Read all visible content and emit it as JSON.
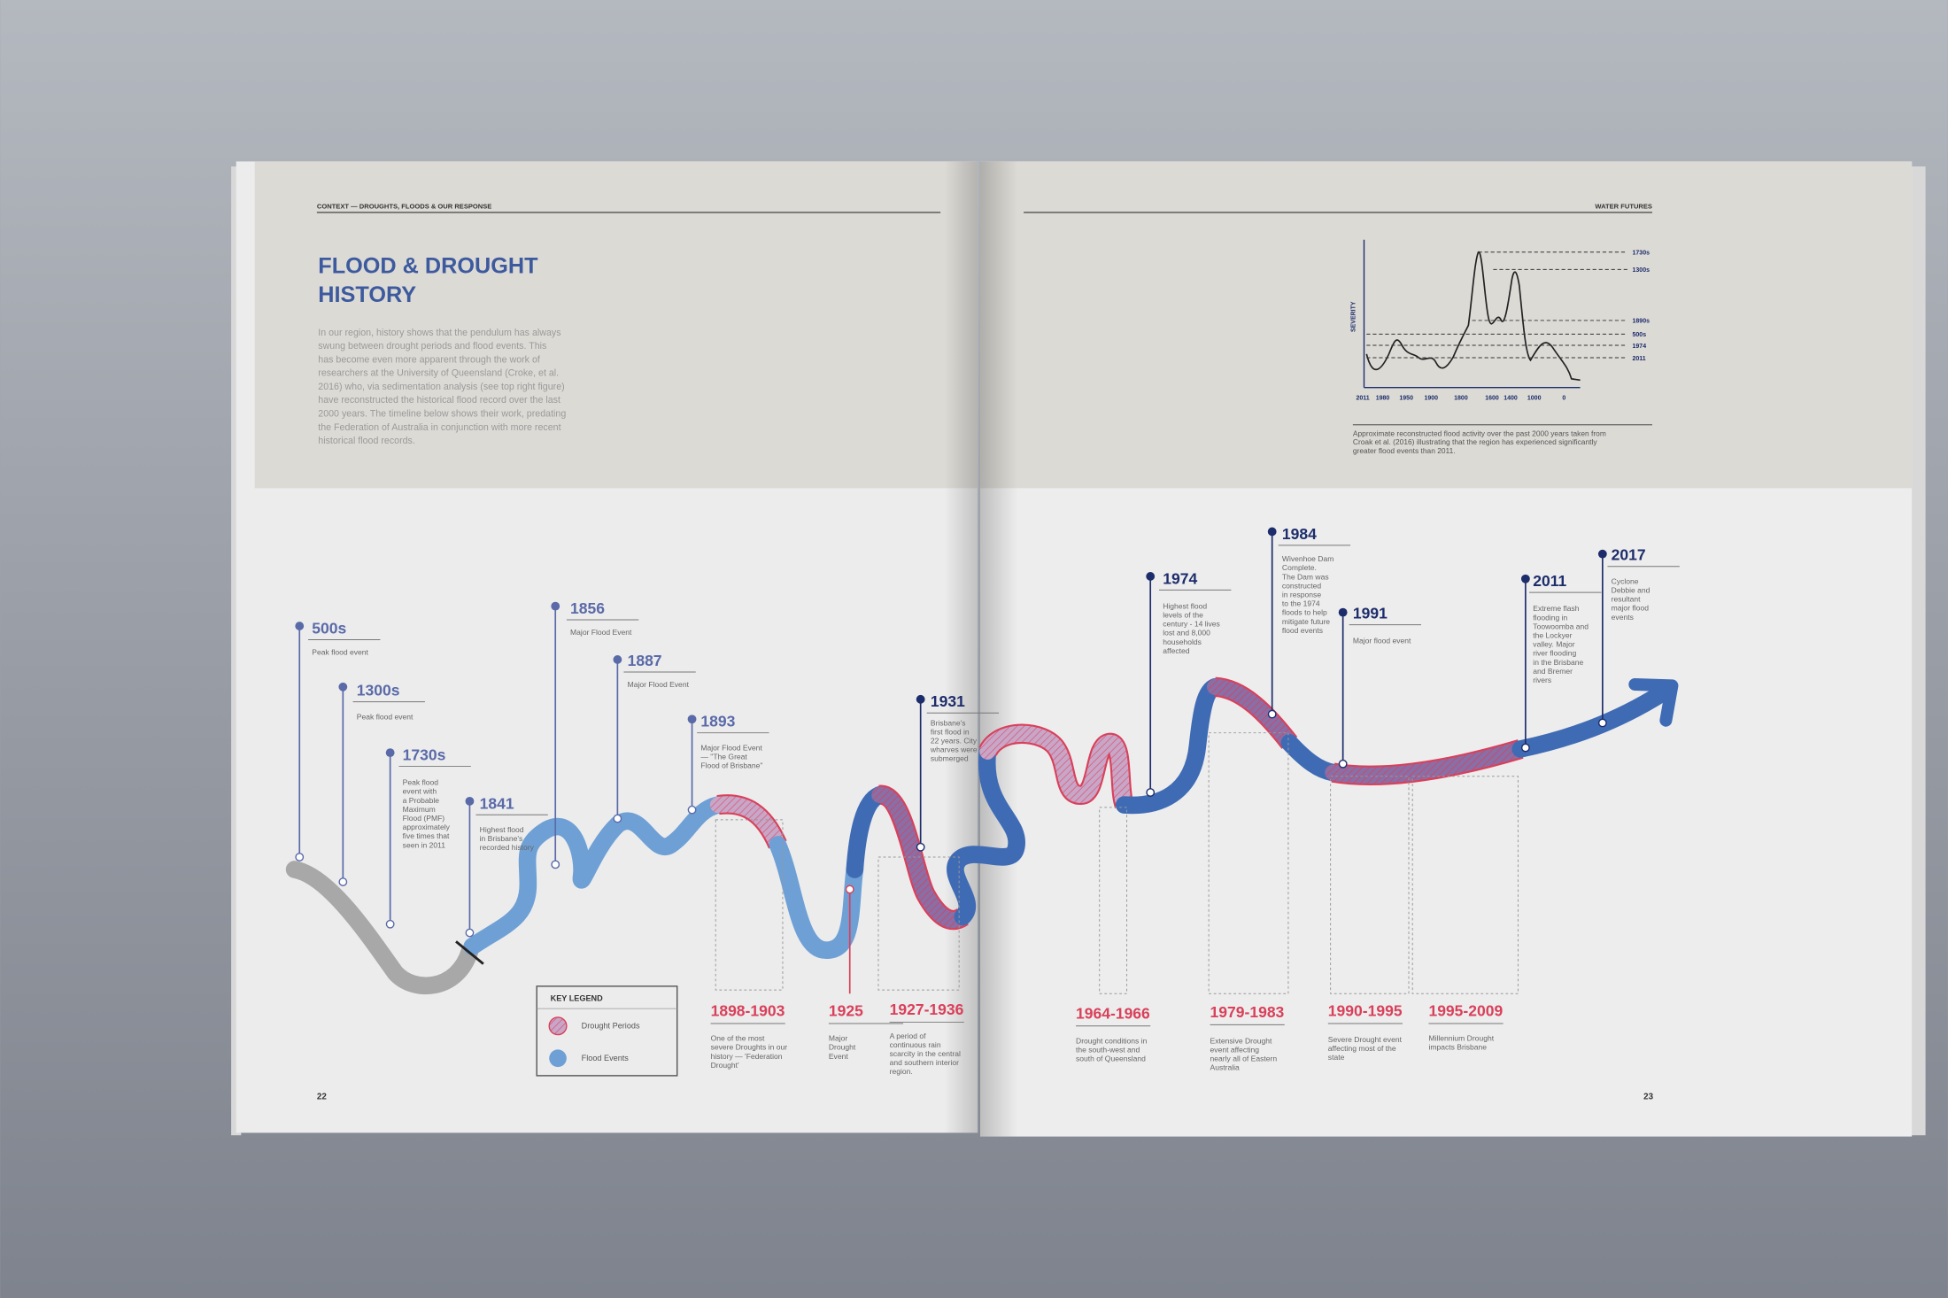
{
  "left_page": {
    "header": "CONTEXT — DROUGHTS, FLOODS &  OUR RESPONSE",
    "title": [
      "FLOOD & DROUGHT",
      "HISTORY"
    ],
    "body": [
      "In our region, history shows that the pendulum has always",
      "swung between drought periods and flood events. This",
      "has become even more apparent through the work of",
      "researchers at the University of Queensland (Croke, et al.",
      "2016) who, via sedimentation analysis (see top right figure)",
      "have reconstructed the historical flood record over the last",
      "2000 years. The timeline below shows their work, predating",
      "the Federation of Australia in conjunction with more recent",
      "historical flood records."
    ],
    "page_number": "22"
  },
  "right_page": {
    "header": "WATER FUTURES",
    "figure": {
      "y_label": "SEVERITY",
      "x_labels": [
        "2011",
        "1980",
        "1950",
        "1900",
        "1800",
        "1600",
        "1400",
        "1000",
        "0"
      ],
      "peak_labels": [
        "1730s",
        "1300s",
        "1890s",
        "500s",
        "1974",
        "2011"
      ],
      "caption": [
        "Approximate reconstructed flood activity over the past 2000 years taken from",
        "Croak et al. (2016) illustrating that the region has experienced significantly",
        "greater flood events than 2011."
      ]
    },
    "page_number": "23"
  },
  "flood_events": [
    {
      "year": "500s",
      "description": [
        "Peak flood event"
      ]
    },
    {
      "year": "1300s",
      "description": [
        "Peak flood event"
      ]
    },
    {
      "year": "1730s",
      "description": [
        "Peak flood",
        "event with",
        "a Probable",
        "Maximum",
        "Flood (PMF)",
        "approximately",
        "five times that",
        "seen in 2011"
      ]
    },
    {
      "year": "1841",
      "description": [
        "Highest flood",
        "in Brisbane's",
        "recorded history"
      ]
    },
    {
      "year": "1856",
      "description": [
        "Major Flood Event"
      ]
    },
    {
      "year": "1887",
      "description": [
        "Major Flood Event"
      ]
    },
    {
      "year": "1893",
      "description": [
        "Major Flood Event",
        "— \"The Great",
        "Flood of Brisbane\""
      ]
    },
    {
      "year": "1931",
      "description": [
        "Brisbane's",
        "first flood in",
        "22 years. City",
        "wharves were",
        "submerged"
      ]
    },
    {
      "year": "1974",
      "description": [
        "Highest flood",
        "levels of the",
        "century - 14 lives",
        "lost and 8,000",
        "households",
        "affected"
      ]
    },
    {
      "year": "1984",
      "description": [
        "Wivenhoe Dam",
        "Complete.",
        "The Dam was",
        "constructed",
        "in response",
        "to the 1974",
        "floods to help",
        "mitigate future",
        "flood events"
      ]
    },
    {
      "year": "1991",
      "description": [
        "Major flood event"
      ]
    },
    {
      "year": "2011",
      "description": [
        "Extreme flash",
        "flooding in",
        "Toowoomba and",
        "the Lockyer",
        "valley. Major",
        "river flooding",
        "in the Brisbane",
        "and Bremer",
        "rivers"
      ]
    },
    {
      "year": "2017",
      "description": [
        "Cyclone",
        "Debbie and",
        "resultant",
        "major flood",
        "events"
      ]
    }
  ],
  "drought_periods": [
    {
      "period": "1898-1903",
      "description": [
        "One of the most",
        "severe Droughts in our",
        "history — 'Federation",
        "Drought'"
      ]
    },
    {
      "period": "1925",
      "description": [
        "Major",
        "Drought",
        "Event"
      ]
    },
    {
      "period": "1927-1936",
      "description": [
        "A period of",
        "continuous rain",
        "scarcity in the central",
        "and southern interior",
        "region."
      ]
    },
    {
      "period": "1964-1966",
      "description": [
        "Drought conditions in",
        "the south-west and",
        "south of Queensland"
      ]
    },
    {
      "period": "1979-1983",
      "description": [
        "Extensive Drought",
        "event affecting",
        "nearly all of Eastern",
        "Australia"
      ]
    },
    {
      "period": "1990-1995",
      "description": [
        "Severe Drought event",
        "affecting most of the",
        "state"
      ]
    },
    {
      "period": "1995-2009",
      "description": [
        "Millennium Drought",
        "impacts  Brisbane"
      ]
    }
  ],
  "legend": {
    "title": "KEY LEGEND",
    "items": [
      "Drought Periods",
      "Flood Events"
    ]
  }
}
